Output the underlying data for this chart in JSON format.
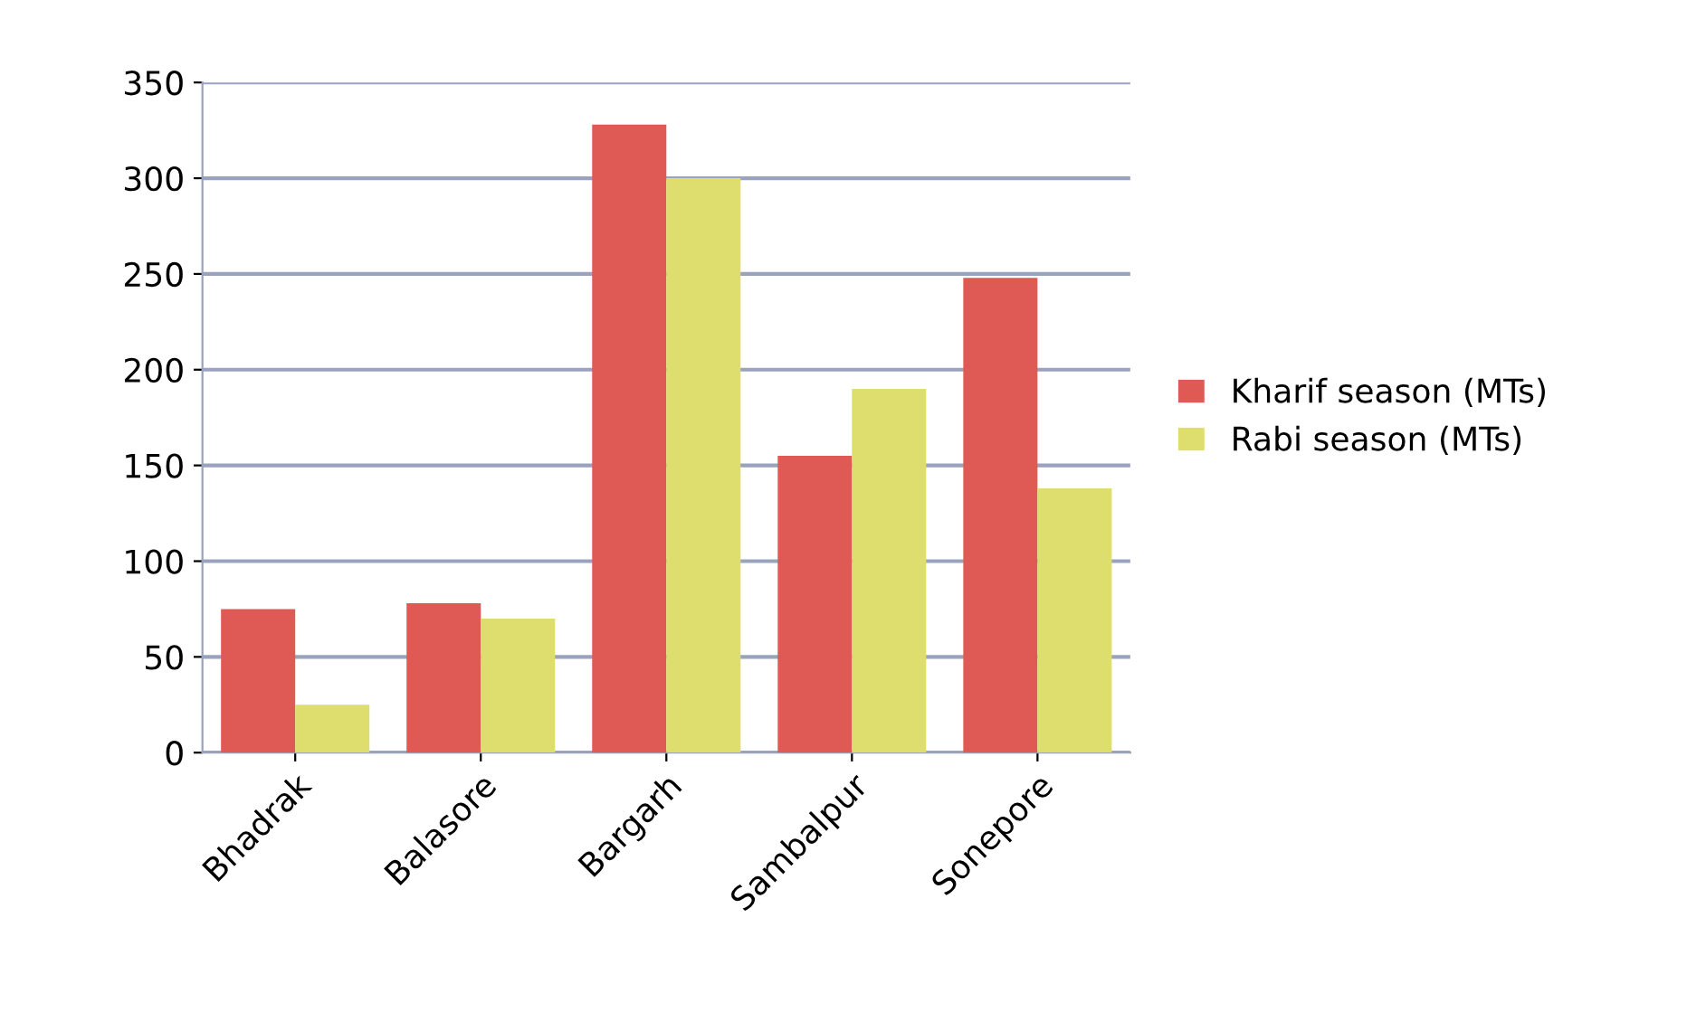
{
  "chart_data": {
    "type": "bar",
    "categories": [
      "Bhadrak",
      "Balasore",
      "Bargarh",
      "Sambalpur",
      "Sonepore"
    ],
    "series": [
      {
        "name": "Kharif season (MTs)",
        "color": "#e05a55",
        "values": [
          75,
          78,
          328,
          155,
          248
        ]
      },
      {
        "name": "Rabi season (MTs)",
        "color": "#dede6e",
        "values": [
          25,
          70,
          300,
          190,
          138
        ]
      }
    ],
    "ylim": [
      0,
      350
    ],
    "yticks": [
      0,
      50,
      100,
      150,
      200,
      250,
      300,
      350
    ],
    "grid": "y",
    "legend": "right"
  }
}
